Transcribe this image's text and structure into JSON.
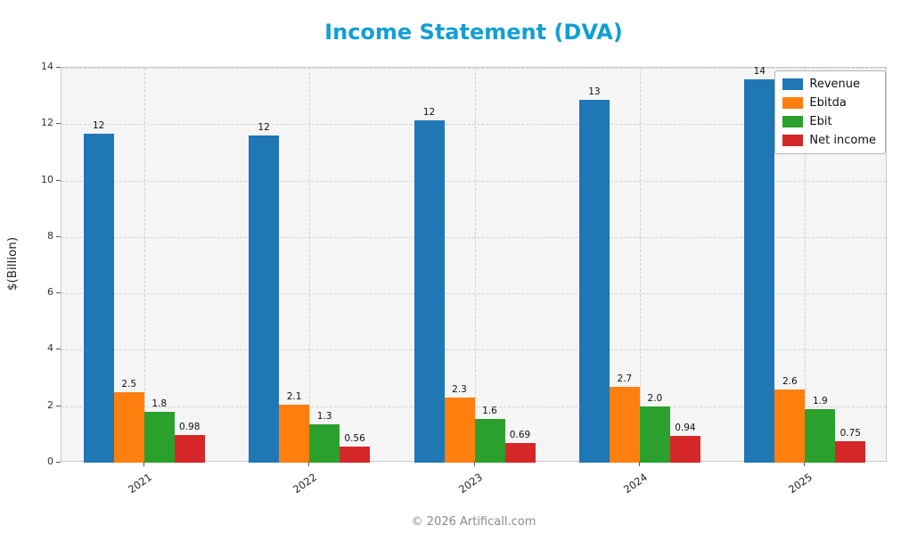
{
  "footer": "© 2026 Artificall.com",
  "colors": {
    "title": "#119fd4",
    "plot_background": "#f5f5f6",
    "grid": "#d2d2d2"
  },
  "chart_data": {
    "type": "bar",
    "title": "Income Statement (DVA)",
    "xlabel": "",
    "ylabel": "$(Billion)",
    "ylim": [
      0,
      14
    ],
    "yticks": [
      0,
      2,
      4,
      6,
      8,
      10,
      12,
      14
    ],
    "categories": [
      "2021",
      "2022",
      "2023",
      "2024",
      "2025"
    ],
    "grid": true,
    "legend_position": "upper right",
    "series": [
      {
        "name": "Revenue",
        "color": "#1f77b4",
        "values": [
          11.65,
          11.6,
          12.15,
          12.85,
          13.6
        ],
        "labels": [
          "12",
          "12",
          "12",
          "13",
          "14"
        ]
      },
      {
        "name": "Ebitda",
        "color": "#ff7f0e",
        "values": [
          2.5,
          2.05,
          2.3,
          2.7,
          2.6
        ],
        "labels": [
          "2.5",
          "2.1",
          "2.3",
          "2.7",
          "2.6"
        ]
      },
      {
        "name": "Ebit",
        "color": "#2ca02c",
        "values": [
          1.8,
          1.35,
          1.55,
          2.0,
          1.9
        ],
        "labels": [
          "1.8",
          "1.3",
          "1.6",
          "2.0",
          "1.9"
        ]
      },
      {
        "name": "Net income",
        "color": "#d62728",
        "values": [
          0.98,
          0.56,
          0.69,
          0.94,
          0.75
        ],
        "labels": [
          "0.98",
          "0.56",
          "0.69",
          "0.94",
          "0.75"
        ]
      }
    ]
  }
}
